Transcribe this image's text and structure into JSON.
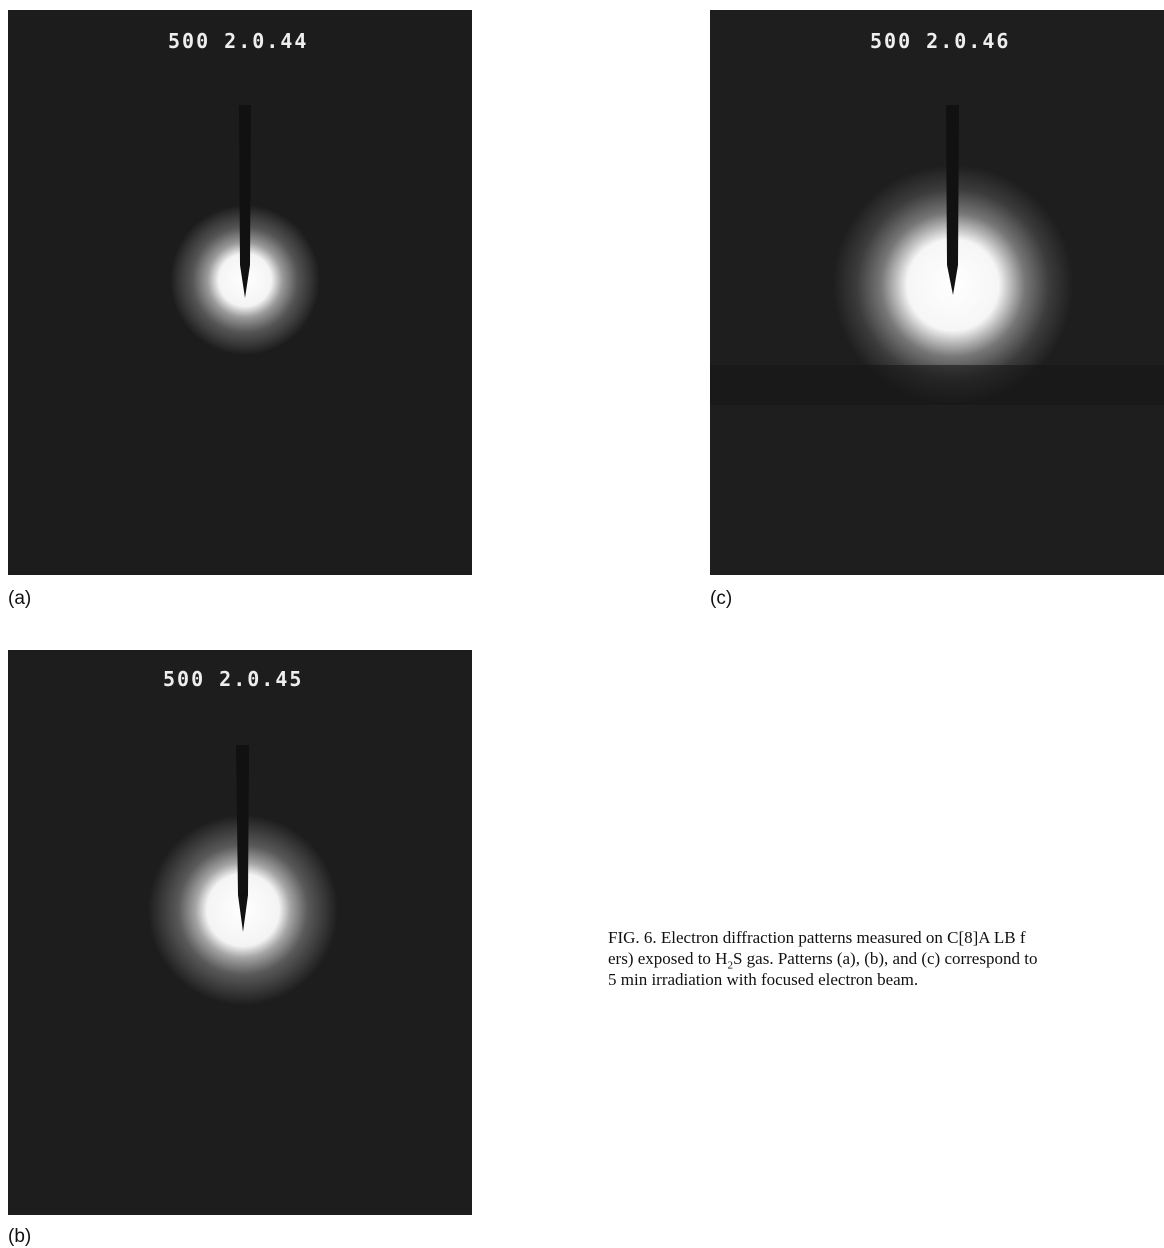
{
  "panels": [
    {
      "label": "(a)",
      "overlay": "500 2.0.44"
    },
    {
      "label": "(c)",
      "overlay": "500 2.0.46"
    },
    {
      "label": "(b)",
      "overlay": "500 2.0.45"
    }
  ],
  "caption": {
    "line1": "FIG. 6. Electron diffraction patterns measured on C[8]A LB f",
    "line2": [
      "ers) exposed to H",
      "2",
      "S gas. Patterns (a), (b), and (c) correspond to"
    ],
    "line3": "5 min irradiation with focused electron beam."
  }
}
